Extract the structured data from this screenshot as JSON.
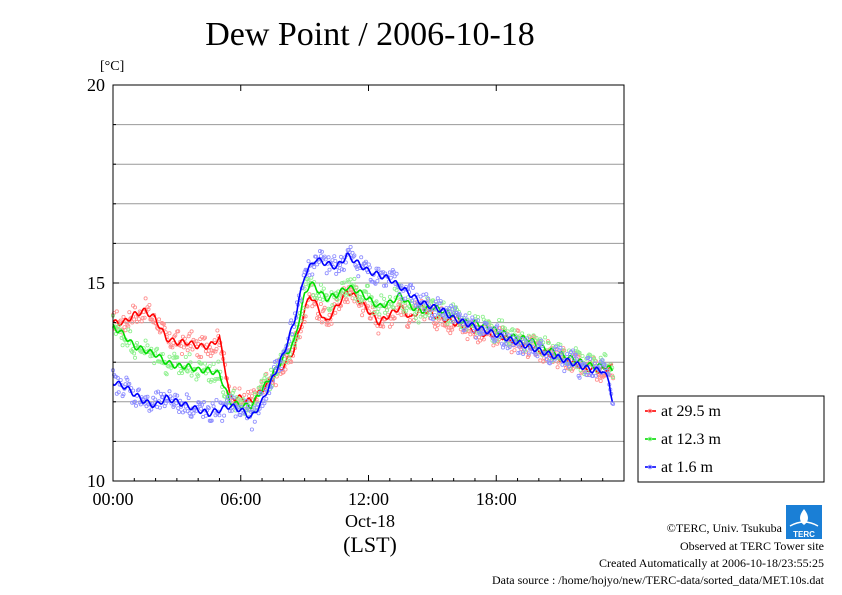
{
  "chart_data": {
    "type": "line",
    "title": "Dew Point / 2006-10-18",
    "y_unit": "[°C]",
    "ylim": [
      10,
      20
    ],
    "y_ticks": [
      10,
      15,
      20
    ],
    "y_tick_labels": [
      "10",
      "15",
      "20"
    ],
    "y_gridlines": [
      11,
      12,
      13,
      14,
      15,
      16,
      17,
      18,
      19
    ],
    "xlim": [
      0,
      24
    ],
    "x_ticks": [
      0,
      6,
      12,
      18
    ],
    "x_tick_labels": [
      "00:00",
      "06:00",
      "12:00",
      "18:00"
    ],
    "x_date_label": "Oct-18",
    "x_axis_label": "(LST)",
    "grid": true,
    "legend_position": "right",
    "series": [
      {
        "name": "at 29.5 m",
        "color": "#ff0000",
        "light_color": "#ff8c8c",
        "x": [
          0,
          0.5,
          1,
          1.5,
          2,
          2.5,
          3,
          3.5,
          4,
          4.5,
          5,
          5.25,
          5.5,
          6,
          6.5,
          7,
          7.5,
          8,
          8.5,
          9,
          9.25,
          9.5,
          10,
          10.5,
          11,
          11.5,
          12,
          12.5,
          13,
          13.5,
          14,
          14.5,
          15,
          15.5,
          16,
          16.5,
          17,
          17.5,
          18,
          18.5,
          19,
          19.5,
          20,
          20.5,
          21,
          21.5,
          22,
          22.5,
          23,
          23.5
        ],
        "y": [
          14.0,
          14.0,
          14.2,
          14.3,
          14.1,
          13.6,
          13.5,
          13.5,
          13.4,
          13.4,
          13.6,
          12.9,
          12.1,
          12.1,
          12.0,
          12.3,
          12.6,
          12.9,
          13.3,
          14.3,
          14.7,
          14.5,
          14.0,
          14.4,
          14.8,
          14.6,
          14.3,
          14.0,
          14.2,
          14.4,
          14.1,
          14.4,
          14.2,
          14.1,
          14.0,
          13.9,
          13.8,
          13.7,
          13.7,
          13.6,
          13.5,
          13.4,
          13.3,
          13.2,
          13.1,
          13.0,
          12.9,
          12.8,
          12.8,
          12.9
        ]
      },
      {
        "name": "at 12.3 m",
        "color": "#00dd00",
        "light_color": "#8cf08c",
        "x": [
          0,
          0.5,
          1,
          1.5,
          2,
          2.5,
          3,
          3.5,
          4,
          4.5,
          5,
          5.5,
          6,
          6.5,
          7,
          7.5,
          8,
          8.5,
          9,
          9.25,
          9.5,
          10,
          10.5,
          11,
          11.5,
          12,
          12.5,
          13,
          13.5,
          14,
          14.5,
          15,
          15.5,
          16,
          16.5,
          17,
          17.5,
          18,
          18.5,
          19,
          19.5,
          20,
          20.5,
          21,
          21.5,
          22,
          22.5,
          23,
          23.5
        ],
        "y": [
          13.9,
          13.7,
          13.4,
          13.3,
          13.2,
          13.0,
          12.9,
          12.9,
          12.8,
          12.8,
          12.7,
          12.0,
          11.9,
          11.9,
          12.3,
          12.7,
          13.1,
          13.5,
          14.7,
          15.0,
          14.9,
          14.6,
          14.7,
          14.9,
          14.8,
          14.6,
          14.4,
          14.5,
          14.7,
          14.4,
          14.3,
          14.4,
          14.3,
          14.2,
          14.0,
          14.0,
          13.9,
          13.8,
          13.7,
          13.6,
          13.6,
          13.4,
          13.3,
          13.2,
          13.1,
          13.0,
          12.9,
          12.9,
          12.8
        ]
      },
      {
        "name": "at 1.6 m",
        "color": "#0000ff",
        "light_color": "#8c8cff",
        "x": [
          0,
          0.5,
          1,
          1.5,
          2,
          2.5,
          3,
          3.5,
          4,
          4.5,
          5,
          5.5,
          6,
          6.5,
          7,
          7.5,
          8,
          8.5,
          9,
          9.5,
          10,
          10.5,
          11,
          11.5,
          12,
          12.5,
          13,
          13.5,
          14,
          14.5,
          15,
          15.5,
          16,
          16.5,
          17,
          17.5,
          18,
          18.5,
          19,
          19.5,
          20,
          20.5,
          21,
          21.5,
          22,
          22.5,
          23,
          23.3,
          23.5
        ],
        "y": [
          12.5,
          12.4,
          12.2,
          12.0,
          11.9,
          12.1,
          12.0,
          11.9,
          11.8,
          11.7,
          11.8,
          11.9,
          11.8,
          11.6,
          12.0,
          12.6,
          13.2,
          14.0,
          15.2,
          15.6,
          15.5,
          15.4,
          15.7,
          15.5,
          15.3,
          15.2,
          15.1,
          14.9,
          14.7,
          14.5,
          14.4,
          14.3,
          14.1,
          14.0,
          13.9,
          13.8,
          13.7,
          13.6,
          13.5,
          13.4,
          13.3,
          13.2,
          13.1,
          13.0,
          12.9,
          12.8,
          12.8,
          12.5,
          11.9
        ]
      }
    ]
  },
  "credits": {
    "copyright": "©TERC, Univ. Tsukuba",
    "observed": "Observed at TERC Tower site",
    "created": "Created Automatically at 2006-10-18/23:55:25",
    "source": "Data source : /home/hojyo/new/TERC-data/sorted_data/MET.10s.dat",
    "logo_text": "TERC"
  }
}
